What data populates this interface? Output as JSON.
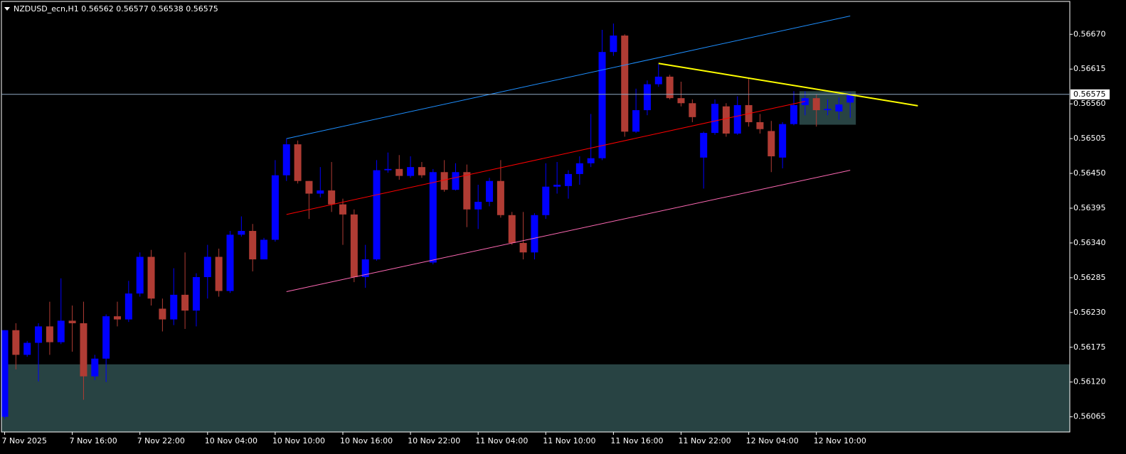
{
  "chart_data": {
    "type": "candlestick",
    "title": "NZDUSD_ecn,H1  0.56562 0.56577 0.56538 0.56575",
    "categories": [
      "7 Nov 2025",
      null,
      null,
      null,
      null,
      null,
      "7 Nov 16:00",
      null,
      null,
      null,
      null,
      null,
      "7 Nov 22:00",
      null,
      null,
      null,
      null,
      null,
      "10 Nov 04:00",
      null,
      null,
      null,
      null,
      null,
      "10 Nov 10:00",
      null,
      null,
      null,
      null,
      null,
      "10 Nov 16:00",
      null,
      null,
      null,
      null,
      null,
      "10 Nov 22:00",
      null,
      null,
      null,
      null,
      null,
      "11 Nov 04:00",
      null,
      null,
      null,
      null,
      null,
      "11 Nov 10:00",
      null,
      null,
      null,
      null,
      null,
      "11 Nov 16:00",
      null,
      null,
      null,
      null,
      null,
      "11 Nov 22:00",
      null,
      null,
      null,
      null,
      null,
      "12 Nov 04:00",
      null,
      null,
      null,
      null,
      null,
      "12 Nov 10:00",
      null,
      null,
      null
    ],
    "open": [
      0.56065,
      0.56202,
      0.56163,
      0.56182,
      0.56208,
      0.56183,
      0.56217,
      0.56213,
      0.56129,
      0.56157,
      0.56224,
      0.56219,
      0.5626,
      0.56318,
      0.56236,
      0.56219,
      0.56258,
      0.56233,
      0.56286,
      0.56318,
      0.56264,
      0.56353,
      0.56359,
      0.56314,
      0.56345,
      0.56447,
      0.56496,
      0.56438,
      0.56418,
      0.56423,
      0.56401,
      0.56385,
      0.56286,
      0.56314,
      0.56455,
      0.56457,
      0.56446,
      0.5646,
      0.56309,
      0.56452,
      0.56424,
      0.56452,
      0.56393,
      0.56405,
      0.56438,
      0.56384,
      0.5634,
      0.56325,
      0.56384,
      0.56429,
      0.5643,
      0.56449,
      0.56466,
      0.56474,
      0.56642,
      0.56668,
      0.56516,
      0.5655,
      0.56591,
      0.56603,
      0.56569,
      0.56561,
      0.56475,
      0.56514,
      0.56556,
      0.56513,
      0.56558,
      0.56531,
      0.56517,
      0.56475,
      0.56528,
      0.56558,
      0.56569,
      0.5655,
      0.56548,
      0.56562
    ],
    "high": [
      0.56202,
      0.56213,
      0.56185,
      0.56213,
      0.56247,
      0.56284,
      0.56241,
      0.56247,
      0.56163,
      0.56227,
      0.56247,
      0.5628,
      0.56325,
      0.56329,
      0.56252,
      0.563,
      0.56325,
      0.56292,
      0.56337,
      0.56331,
      0.56359,
      0.56382,
      0.5637,
      0.56348,
      0.56471,
      0.56505,
      0.56502,
      0.56438,
      0.5646,
      0.56468,
      0.5641,
      0.56393,
      0.56337,
      0.56471,
      0.56483,
      0.56479,
      0.56477,
      0.56468,
      0.56457,
      0.56471,
      0.56466,
      0.56464,
      0.56432,
      0.56443,
      0.56471,
      0.56389,
      0.56389,
      0.56387,
      0.56466,
      0.56468,
      0.56455,
      0.56477,
      0.56544,
      0.56677,
      0.56687,
      0.5667,
      0.56584,
      0.56597,
      0.56623,
      0.56606,
      0.56595,
      0.56567,
      0.56516,
      0.56567,
      0.56561,
      0.56572,
      0.566,
      0.56544,
      0.56533,
      0.56531,
      0.5658,
      0.5658,
      0.56575,
      0.56567,
      0.5657,
      0.56577
    ],
    "low": [
      0.56062,
      0.5614,
      0.5616,
      0.56121,
      0.56163,
      0.5618,
      0.56168,
      0.56092,
      0.56123,
      0.5612,
      0.56208,
      0.56215,
      0.56255,
      0.56241,
      0.562,
      0.5621,
      0.56204,
      0.56208,
      0.56252,
      0.56255,
      0.56261,
      0.5635,
      0.56295,
      0.56314,
      0.56342,
      0.56438,
      0.56434,
      0.56378,
      0.56412,
      0.56389,
      0.56337,
      0.56278,
      0.56269,
      0.56312,
      0.56451,
      0.5644,
      0.56443,
      0.56443,
      0.56306,
      0.56421,
      0.56423,
      0.56365,
      0.56362,
      0.56398,
      0.5638,
      0.56337,
      0.56314,
      0.56314,
      0.56378,
      0.56418,
      0.5641,
      0.56432,
      0.5646,
      0.56471,
      0.56636,
      0.56508,
      0.56514,
      0.56542,
      0.56587,
      0.56567,
      0.56556,
      0.56531,
      0.56426,
      0.56511,
      0.56508,
      0.56511,
      0.56524,
      0.56513,
      0.56452,
      0.56458,
      0.56526,
      0.56542,
      0.56524,
      0.56542,
      0.56535,
      0.56538
    ],
    "close": [
      0.56202,
      0.56163,
      0.56182,
      0.56208,
      0.56183,
      0.56217,
      0.56213,
      0.56129,
      0.56157,
      0.56224,
      0.56219,
      0.5626,
      0.56318,
      0.56252,
      0.56219,
      0.56258,
      0.56233,
      0.56286,
      0.56318,
      0.56264,
      0.56353,
      0.56359,
      0.56314,
      0.56345,
      0.56447,
      0.56496,
      0.56438,
      0.56418,
      0.56423,
      0.56401,
      0.56385,
      0.56286,
      0.56314,
      0.56455,
      0.56457,
      0.56446,
      0.5646,
      0.56447,
      0.56452,
      0.56424,
      0.56452,
      0.56393,
      0.56405,
      0.56438,
      0.56384,
      0.5634,
      0.56325,
      0.56384,
      0.56429,
      0.56432,
      0.56449,
      0.56466,
      0.56474,
      0.56642,
      0.56668,
      0.56516,
      0.5655,
      0.56591,
      0.56603,
      0.56569,
      0.56561,
      0.56539,
      0.56514,
      0.5656,
      0.56513,
      0.56558,
      0.56531,
      0.5652,
      0.56477,
      0.56528,
      0.56558,
      0.56569,
      0.5655,
      0.56552,
      0.56559,
      0.56575
    ],
    "up_color": "#0000ff",
    "down_color": "#b03c34",
    "ylim": [
      0.56041,
      0.56722
    ],
    "yticks": [
      {
        "value": 0.5667,
        "label": "0.56670"
      },
      {
        "value": 0.56615,
        "label": "0.56615"
      },
      {
        "value": 0.5656,
        "label": "0.56560"
      },
      {
        "value": 0.56505,
        "label": "0.56505"
      },
      {
        "value": 0.5645,
        "label": "0.56450"
      },
      {
        "value": 0.56395,
        "label": "0.56395"
      },
      {
        "value": 0.5634,
        "label": "0.56340"
      },
      {
        "value": 0.56285,
        "label": "0.56285"
      },
      {
        "value": 0.5623,
        "label": "0.56230"
      },
      {
        "value": 0.56175,
        "label": "0.56175"
      },
      {
        "value": 0.5612,
        "label": "0.56120"
      },
      {
        "value": 0.56065,
        "label": "0.56065"
      }
    ],
    "price_line": {
      "value": 0.56575,
      "label": "0.56575",
      "color": "#8fa9c4"
    },
    "trendlines": [
      {
        "color": "#1e8fff",
        "x": [
          25,
          75
        ],
        "y": [
          0.56505,
          0.56699
        ]
      },
      {
        "color": "#ff0000",
        "x": [
          25,
          71
        ],
        "y": [
          0.56385,
          0.56564
        ]
      },
      {
        "color": "#ff69b4",
        "x": [
          25,
          75
        ],
        "y": [
          0.56263,
          0.56455
        ]
      },
      {
        "color": "#ffff00",
        "x": [
          58,
          81
        ],
        "y": [
          0.56624,
          0.56557
        ]
      }
    ],
    "zones": [
      {
        "color": "#2f4f4f",
        "x": [
          -1,
          95
        ],
        "y": [
          0.56041,
          0.56148
        ]
      },
      {
        "color": "#2f4f4f",
        "x": [
          71,
          76
        ],
        "y": [
          0.56527,
          0.5658
        ]
      }
    ]
  }
}
